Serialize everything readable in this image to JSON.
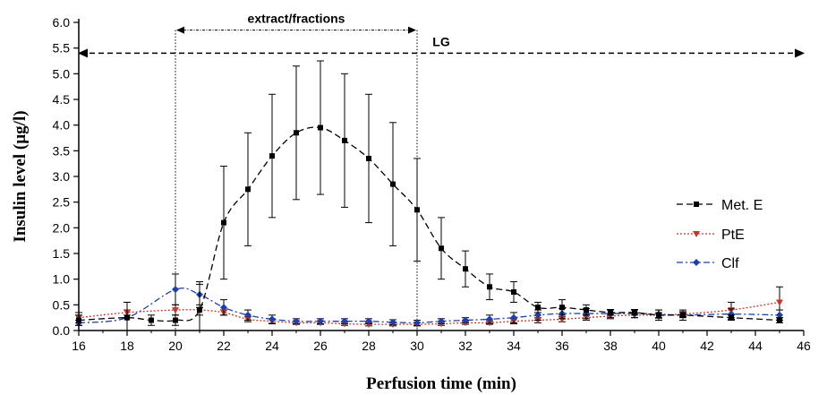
{
  "chart_data": {
    "type": "line",
    "xlabel": "Perfusion time (min)",
    "ylabel": "Insulin level (µg/l)",
    "xlim": [
      16,
      46
    ],
    "ylim": [
      0,
      6.0
    ],
    "xticks": [
      16,
      18,
      20,
      22,
      24,
      26,
      28,
      30,
      32,
      34,
      36,
      38,
      40,
      42,
      44,
      46
    ],
    "yticks": [
      "0.0",
      "0.5",
      "1.0",
      "1.5",
      "2.0",
      "2.5",
      "3.0",
      "3.5",
      "4.0",
      "4.5",
      "5.0",
      "5.5",
      "6.0"
    ],
    "legend_position": "right",
    "series": [
      {
        "name": "Met. E",
        "color": "#000000",
        "line_style": "dashed",
        "marker": "square",
        "x": [
          16,
          18,
          19,
          20,
          21,
          22,
          23,
          24,
          25,
          26,
          27,
          28,
          29,
          30,
          31,
          32,
          33,
          34,
          35,
          36,
          37,
          38,
          39,
          40,
          41,
          43,
          45
        ],
        "y": [
          0.2,
          0.25,
          0.2,
          0.2,
          0.4,
          2.1,
          2.75,
          3.4,
          3.85,
          3.95,
          3.7,
          3.35,
          2.85,
          2.35,
          1.6,
          1.2,
          0.85,
          0.75,
          0.45,
          0.45,
          0.4,
          0.35,
          0.35,
          0.3,
          0.3,
          0.25,
          0.2
        ],
        "error": [
          0.1,
          0.3,
          0.1,
          0.1,
          0.5,
          1.1,
          1.1,
          1.2,
          1.3,
          1.3,
          1.3,
          1.25,
          1.2,
          1.0,
          0.6,
          0.35,
          0.25,
          0.2,
          0.1,
          0.15,
          0.1,
          0.05,
          0.05,
          0.1,
          0.05,
          0.05,
          0.05
        ]
      },
      {
        "name": "PtE",
        "color": "#c0392b",
        "line_style": "dotted",
        "marker": "triangle-down",
        "x": [
          16,
          18,
          20,
          21,
          22,
          23,
          24,
          25,
          26,
          27,
          28,
          29,
          30,
          31,
          32,
          33,
          34,
          35,
          36,
          37,
          38,
          39,
          40,
          41,
          43,
          45
        ],
        "y": [
          0.25,
          0.35,
          0.4,
          0.4,
          0.35,
          0.22,
          0.18,
          0.15,
          0.15,
          0.13,
          0.12,
          0.12,
          0.12,
          0.13,
          0.15,
          0.15,
          0.18,
          0.2,
          0.22,
          0.25,
          0.28,
          0.3,
          0.3,
          0.32,
          0.4,
          0.55
        ],
        "error": [
          0.1,
          0.05,
          0.1,
          0.1,
          0.05,
          0.05,
          0.05,
          0.03,
          0.03,
          0.03,
          0.03,
          0.03,
          0.03,
          0.03,
          0.03,
          0.03,
          0.05,
          0.05,
          0.05,
          0.05,
          0.05,
          0.05,
          0.05,
          0.05,
          0.15,
          0.3
        ]
      },
      {
        "name": "Clf",
        "color": "#1f3fa6",
        "line_style": "dash-dot",
        "marker": "diamond",
        "x": [
          16,
          18,
          20,
          21,
          22,
          23,
          24,
          25,
          26,
          27,
          28,
          29,
          30,
          31,
          32,
          33,
          34,
          35,
          36,
          37,
          38,
          39,
          40,
          41,
          43,
          45
        ],
        "y": [
          0.15,
          0.25,
          0.8,
          0.7,
          0.45,
          0.3,
          0.22,
          0.18,
          0.18,
          0.18,
          0.18,
          0.16,
          0.15,
          0.18,
          0.2,
          0.22,
          0.25,
          0.3,
          0.33,
          0.33,
          0.33,
          0.33,
          0.32,
          0.3,
          0.32,
          0.3
        ],
        "error": [
          0.05,
          0.3,
          0.3,
          0.25,
          0.15,
          0.1,
          0.08,
          0.05,
          0.05,
          0.05,
          0.05,
          0.05,
          0.05,
          0.05,
          0.05,
          0.08,
          0.1,
          0.1,
          0.1,
          0.1,
          0.08,
          0.08,
          0.08,
          0.1,
          0.1,
          0.1
        ]
      }
    ],
    "annotations": [
      {
        "text": "extract/fractions",
        "x_from": 20,
        "x_to": 30,
        "y": 5.85
      },
      {
        "text": "LG",
        "x_from": 16,
        "x_to": 46,
        "y": 5.4
      }
    ]
  }
}
